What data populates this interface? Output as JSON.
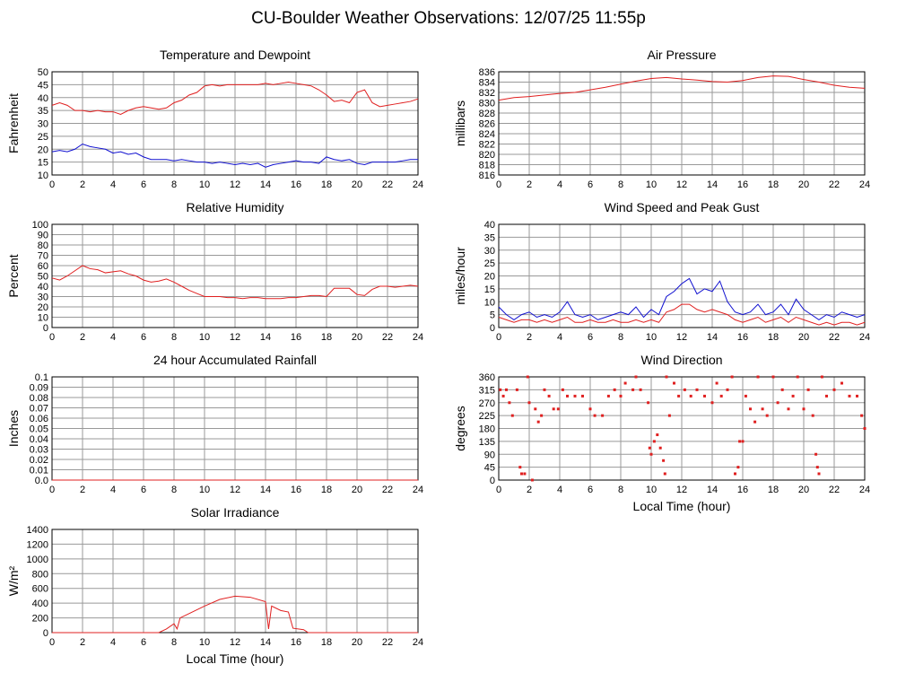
{
  "title": "CU-Boulder Weather Observations: 12/07/25 11:55p",
  "chart_data": [
    {
      "type": "line",
      "title": "Temperature and Dewpoint",
      "ylabel": "Fahrenheit",
      "xlim": [
        0,
        24
      ],
      "xticks": [
        0,
        2,
        4,
        6,
        8,
        10,
        12,
        14,
        16,
        18,
        20,
        22,
        24
      ],
      "ylim": [
        10,
        50
      ],
      "yticks": [
        10,
        15,
        20,
        25,
        30,
        35,
        40,
        45,
        50
      ],
      "grid": true,
      "x": [
        0,
        0.5,
        1,
        1.5,
        2,
        2.5,
        3,
        3.5,
        4,
        4.5,
        5,
        5.5,
        6,
        6.5,
        7,
        7.5,
        8,
        8.5,
        9,
        9.5,
        10,
        10.5,
        11,
        11.5,
        12,
        12.5,
        13,
        13.5,
        14,
        14.5,
        15,
        15.5,
        16,
        16.5,
        17,
        17.5,
        18,
        18.5,
        19,
        19.5,
        20,
        20.5,
        21,
        21.5,
        22,
        22.5,
        23,
        23.5,
        24
      ],
      "series": [
        {
          "color": "#e02020",
          "values": [
            37,
            38,
            37,
            35,
            35,
            34.5,
            35,
            34.5,
            34.5,
            33.5,
            35,
            36,
            36.5,
            36,
            35.5,
            36,
            38,
            39,
            41,
            42,
            44.5,
            45,
            44.5,
            45,
            45,
            45,
            45,
            45,
            45.5,
            45,
            45.5,
            46,
            45.5,
            45,
            44.5,
            43,
            41,
            38.5,
            39,
            38,
            42,
            43,
            38,
            36.5,
            37,
            37.5,
            38,
            38.5,
            39.5
          ]
        },
        {
          "color": "#1010d0",
          "values": [
            19,
            19.5,
            19,
            20,
            22,
            21,
            20.5,
            20,
            18.5,
            19,
            18,
            18.5,
            17,
            16,
            16,
            16,
            15.5,
            16,
            15.5,
            15,
            15,
            14.5,
            15,
            14.5,
            14,
            14.5,
            14,
            14.5,
            13,
            14,
            14.5,
            15,
            15.5,
            15,
            15,
            14.5,
            17,
            16,
            15.5,
            16,
            14.5,
            14,
            15,
            15,
            15,
            15,
            15.5,
            16,
            16
          ]
        }
      ]
    },
    {
      "type": "line",
      "title": "Air Pressure",
      "ylabel": "millibars",
      "xlim": [
        0,
        24
      ],
      "xticks": [
        0,
        2,
        4,
        6,
        8,
        10,
        12,
        14,
        16,
        18,
        20,
        22,
        24
      ],
      "ylim": [
        816,
        836
      ],
      "yticks": [
        816,
        818,
        820,
        822,
        824,
        826,
        828,
        830,
        832,
        834,
        836
      ],
      "grid": true,
      "x": [
        0,
        1,
        2,
        3,
        4,
        5,
        6,
        7,
        8,
        9,
        10,
        11,
        12,
        13,
        14,
        15,
        16,
        17,
        18,
        19,
        20,
        21,
        22,
        23,
        24
      ],
      "series": [
        {
          "color": "#e02020",
          "values": [
            830.5,
            831,
            831.2,
            831.5,
            831.8,
            832,
            832.5,
            833,
            833.6,
            834.2,
            834.7,
            834.9,
            834.6,
            834.4,
            834.1,
            834,
            834.3,
            834.9,
            835.2,
            835.1,
            834.5,
            834,
            833.4,
            833,
            832.8
          ]
        }
      ]
    },
    {
      "type": "line",
      "title": "Relative Humidity",
      "ylabel": "Percent",
      "xlim": [
        0,
        24
      ],
      "xticks": [
        0,
        2,
        4,
        6,
        8,
        10,
        12,
        14,
        16,
        18,
        20,
        22,
        24
      ],
      "ylim": [
        0,
        100
      ],
      "yticks": [
        0,
        10,
        20,
        30,
        40,
        50,
        60,
        70,
        80,
        90,
        100
      ],
      "grid": true,
      "x": [
        0,
        0.5,
        1,
        1.5,
        2,
        2.5,
        3,
        3.5,
        4,
        4.5,
        5,
        5.5,
        6,
        6.5,
        7,
        7.5,
        8,
        8.5,
        9,
        9.5,
        10,
        10.5,
        11,
        11.5,
        12,
        12.5,
        13,
        13.5,
        14,
        14.5,
        15,
        15.5,
        16,
        16.5,
        17,
        17.5,
        18,
        18.5,
        19,
        19.5,
        20,
        20.5,
        21,
        21.5,
        22,
        22.5,
        23,
        23.5,
        24
      ],
      "series": [
        {
          "color": "#e02020",
          "values": [
            48,
            46,
            50,
            55,
            60,
            57,
            56,
            53,
            54,
            55,
            52,
            50,
            46,
            44,
            45,
            47,
            44,
            40,
            36,
            33,
            30,
            30,
            30,
            29,
            29,
            28,
            29,
            29,
            28,
            28,
            28,
            29,
            29,
            30,
            31,
            31,
            30,
            38,
            38,
            38,
            32,
            31,
            37,
            40,
            40,
            39,
            40,
            41,
            40
          ]
        }
      ]
    },
    {
      "type": "line",
      "title": "Wind Speed and Peak Gust",
      "ylabel": "miles/hour",
      "xlim": [
        0,
        24
      ],
      "xticks": [
        0,
        2,
        4,
        6,
        8,
        10,
        12,
        14,
        16,
        18,
        20,
        22,
        24
      ],
      "ylim": [
        0,
        40
      ],
      "yticks": [
        0,
        5,
        10,
        15,
        20,
        25,
        30,
        35,
        40
      ],
      "grid": true,
      "x": [
        0,
        0.5,
        1,
        1.5,
        2,
        2.5,
        3,
        3.5,
        4,
        4.5,
        5,
        5.5,
        6,
        6.5,
        7,
        7.5,
        8,
        8.5,
        9,
        9.5,
        10,
        10.5,
        11,
        11.5,
        12,
        12.5,
        13,
        13.5,
        14,
        14.5,
        15,
        15.5,
        16,
        16.5,
        17,
        17.5,
        18,
        18.5,
        19,
        19.5,
        20,
        20.5,
        21,
        21.5,
        22,
        22.5,
        23,
        23.5,
        24
      ],
      "series": [
        {
          "color": "#1010d0",
          "values": [
            8,
            5,
            3,
            5,
            6,
            4,
            5,
            4,
            6,
            10,
            5,
            4,
            5,
            3,
            4,
            5,
            6,
            5,
            8,
            4,
            7,
            5,
            12,
            14,
            17,
            19,
            13,
            15,
            14,
            18,
            10,
            6,
            5,
            6,
            9,
            5,
            6,
            9,
            5,
            11,
            7,
            5,
            3,
            5,
            4,
            6,
            5,
            4,
            5
          ]
        },
        {
          "color": "#e02020",
          "values": [
            4,
            3,
            2,
            3,
            3,
            2,
            3,
            2,
            3,
            4,
            2,
            2,
            3,
            2,
            2,
            3,
            2,
            2,
            3,
            2,
            3,
            2,
            6,
            7,
            9,
            9,
            7,
            6,
            7,
            6,
            5,
            3,
            2,
            3,
            4,
            2,
            3,
            4,
            2,
            4,
            3,
            2,
            1,
            2,
            1,
            2,
            2,
            1,
            2
          ]
        }
      ]
    },
    {
      "type": "line",
      "title": "24 hour Accumulated Rainfall",
      "ylabel": "Inches",
      "xlim": [
        0,
        24
      ],
      "xticks": [
        0,
        2,
        4,
        6,
        8,
        10,
        12,
        14,
        16,
        18,
        20,
        22,
        24
      ],
      "ylim": [
        0,
        0.1
      ],
      "yticks": [
        {
          "value": 0,
          "label": "0.0"
        },
        0.01,
        0.02,
        0.03,
        0.04,
        0.05,
        0.06,
        0.07,
        0.08,
        0.09,
        0.1
      ],
      "grid": true,
      "x": [
        0,
        24
      ],
      "series": [
        {
          "color": "#e02020",
          "values": [
            0,
            0
          ]
        }
      ]
    },
    {
      "type": "scatter",
      "title": "Wind Direction",
      "ylabel": "degrees",
      "xlabel": "Local Time (hour)",
      "xlim": [
        0,
        24
      ],
      "xticks": [
        0,
        2,
        4,
        6,
        8,
        10,
        12,
        14,
        16,
        18,
        20,
        22,
        24
      ],
      "ylim": [
        0,
        360
      ],
      "yticks": [
        0,
        45,
        90,
        135,
        180,
        225,
        270,
        315,
        360
      ],
      "grid": true,
      "color": "#e02020",
      "x": [
        0.1,
        0.3,
        0.5,
        0.7,
        0.9,
        1.2,
        1.4,
        1.5,
        1.7,
        1.9,
        2,
        2.2,
        2.4,
        2.6,
        2.8,
        3,
        3.3,
        3.6,
        3.9,
        4.2,
        4.5,
        5,
        5.5,
        6,
        6.3,
        6.8,
        7.2,
        7.6,
        8,
        8.3,
        8.8,
        9,
        9.3,
        9.8,
        9.9,
        10,
        10.2,
        10.4,
        10.6,
        10.8,
        10.9,
        11,
        11.2,
        11.5,
        11.8,
        12.2,
        12.6,
        13,
        13.5,
        14,
        14.3,
        14.6,
        15,
        15.3,
        15.5,
        15.7,
        15.8,
        16,
        16.2,
        16.5,
        16.8,
        17,
        17.3,
        17.6,
        18,
        18.3,
        18.6,
        19,
        19.3,
        19.6,
        20,
        20.3,
        20.6,
        20.8,
        20.9,
        21,
        21.2,
        21.5,
        22,
        22.5,
        23,
        23.5,
        23.8,
        24
      ],
      "values": [
        315,
        293,
        315,
        270,
        225,
        315,
        45,
        22,
        22,
        360,
        270,
        0,
        248,
        203,
        225,
        315,
        293,
        248,
        248,
        315,
        293,
        293,
        293,
        248,
        225,
        225,
        293,
        315,
        293,
        338,
        315,
        360,
        315,
        270,
        112,
        90,
        135,
        158,
        112,
        68,
        22,
        360,
        225,
        338,
        293,
        315,
        293,
        315,
        293,
        270,
        338,
        293,
        315,
        360,
        22,
        45,
        135,
        135,
        293,
        248,
        203,
        360,
        248,
        225,
        360,
        270,
        315,
        248,
        293,
        360,
        248,
        315,
        225,
        90,
        45,
        22,
        360,
        293,
        315,
        338,
        293,
        293,
        225,
        180
      ]
    },
    {
      "type": "line",
      "title": "Solar Irradiance",
      "ylabel": "W/m²",
      "xlabel": "Local Time (hour)",
      "xlim": [
        0,
        24
      ],
      "xticks": [
        0,
        2,
        4,
        6,
        8,
        10,
        12,
        14,
        16,
        18,
        20,
        22,
        24
      ],
      "ylim": [
        0,
        1400
      ],
      "yticks": [
        0,
        200,
        400,
        600,
        800,
        1000,
        1200,
        1400
      ],
      "grid": true,
      "x": [
        0,
        7,
        7.5,
        8,
        8.2,
        8.4,
        9,
        10,
        11,
        12,
        13,
        14,
        14.2,
        14.4,
        15,
        15.5,
        15.8,
        16.5,
        16.8,
        24
      ],
      "series": [
        {
          "color": "#e02020",
          "values": [
            0,
            0,
            50,
            120,
            50,
            200,
            260,
            360,
            450,
            495,
            480,
            420,
            50,
            360,
            300,
            280,
            60,
            40,
            0,
            0
          ]
        }
      ]
    }
  ]
}
